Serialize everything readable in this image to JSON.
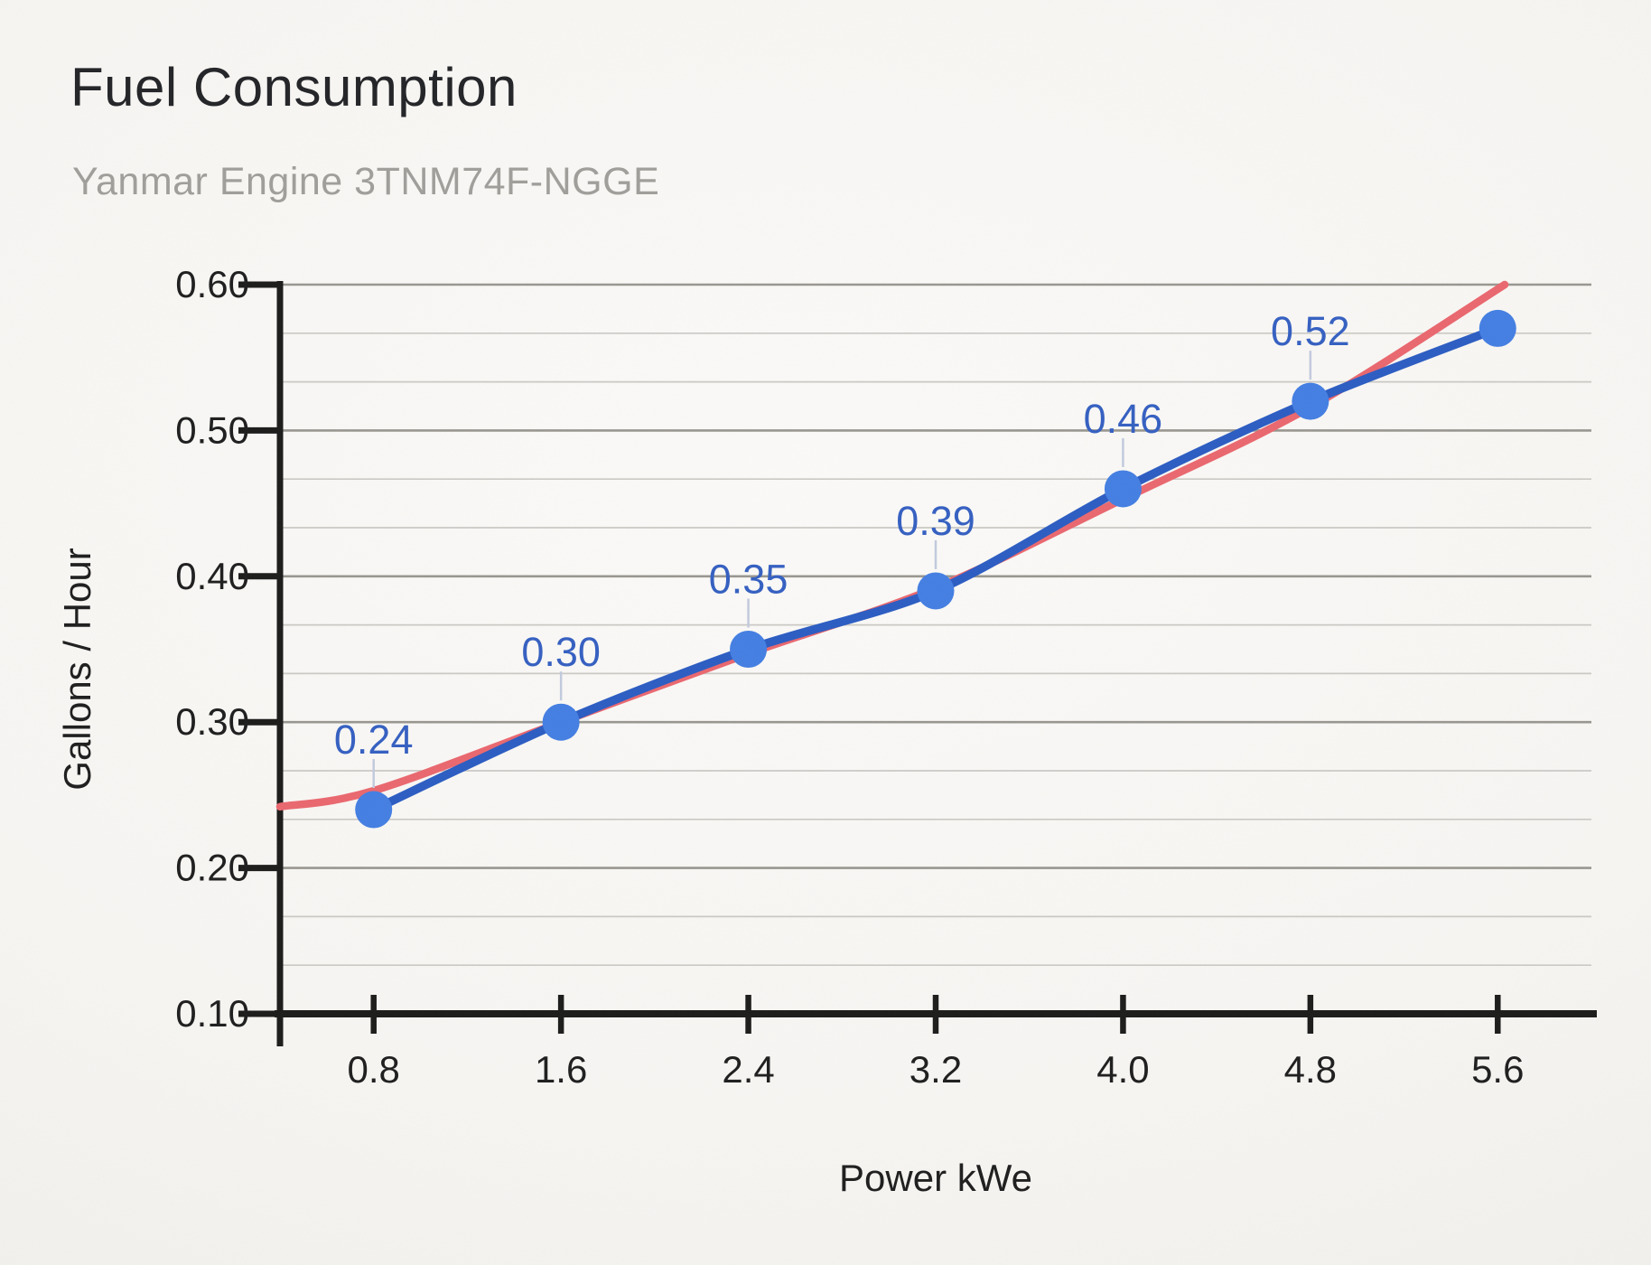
{
  "chart_data": {
    "type": "line",
    "title": "Fuel Consumption",
    "subtitle": "Yanmar Engine 3TNM74F-NGGE",
    "xlabel": "Power kWe",
    "ylabel": "Gallons / Hour",
    "x": [
      0.8,
      1.6,
      2.4,
      3.2,
      4.0,
      4.8,
      5.6
    ],
    "xtick_labels": [
      "0.8",
      "1.6",
      "2.4",
      "3.2",
      "4.0",
      "4.8",
      "5.6"
    ],
    "yticks": [
      0.1,
      0.2,
      0.3,
      0.4,
      0.5,
      0.6
    ],
    "ytick_labels": [
      "0.10",
      "0.20",
      "0.30",
      "0.40",
      "0.50",
      "0.60"
    ],
    "xlim": [
      0.4,
      6.0
    ],
    "ylim": [
      0.1,
      0.6
    ],
    "grid": {
      "visible": true,
      "major_step": 0.1,
      "minor_per_major": 3
    },
    "legend_position": "none",
    "series": [
      {
        "name": "Gallons / Hour",
        "kind": "smooth-line-with-markers",
        "values": [
          0.24,
          0.3,
          0.35,
          0.39,
          0.46,
          0.52,
          0.57
        ],
        "point_labels": [
          "0.24",
          "0.30",
          "0.35",
          "0.39",
          "0.46",
          "0.52",
          ""
        ],
        "line_color": "#2b5cc2",
        "marker_color": "#437ee2",
        "label_color": "#345fc1"
      },
      {
        "name": "Trendline",
        "kind": "trendline",
        "color": "#ea676e",
        "points": [
          [
            0.4,
            0.242
          ],
          [
            0.8,
            0.253
          ],
          [
            1.6,
            0.3
          ],
          [
            2.4,
            0.347
          ],
          [
            3.2,
            0.392
          ],
          [
            4.0,
            0.453
          ],
          [
            4.8,
            0.516
          ],
          [
            5.63,
            0.6
          ]
        ]
      }
    ],
    "colors": {
      "axis": "#1b1b1a",
      "grid_major": "#98968f",
      "grid_minor": "#cbc9c4",
      "tick_label": "#1d1d1d",
      "leader_line": "#c2cade",
      "background": "#f7f5f2"
    }
  }
}
